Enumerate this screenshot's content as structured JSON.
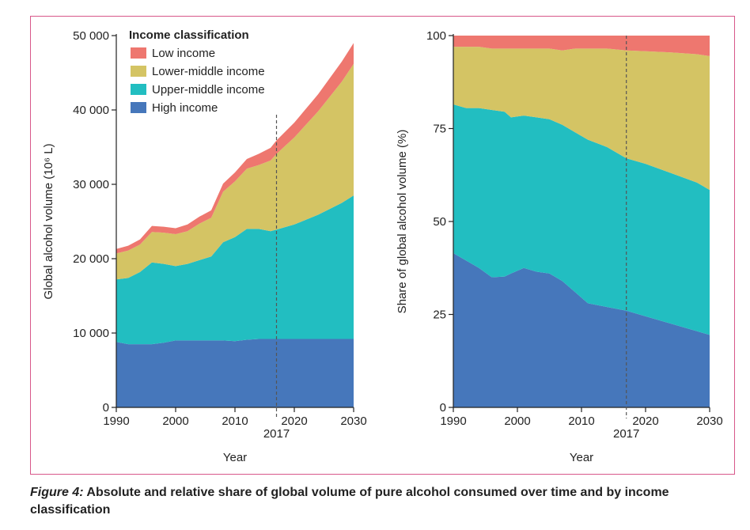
{
  "colors": {
    "low": "#ee776f",
    "lower_middle": "#d4c464",
    "upper_middle": "#22bec1",
    "high": "#4677bb",
    "frame": "#d8578a"
  },
  "legend": {
    "title": "Income classification",
    "items": [
      "Low income",
      "Lower-middle income",
      "Upper-middle income",
      "High income"
    ]
  },
  "caption": {
    "label": "Figure 4:",
    "text": "Absolute and relative share of global volume of pure alcohol consumed over time and by income classification"
  },
  "chart_data": [
    {
      "type": "area",
      "stacked": true,
      "xlabel": "Year",
      "ylabel": "Global alcohol volume (10⁶ L)",
      "xlim": [
        1990,
        2030
      ],
      "ylim": [
        0,
        50000
      ],
      "xticks": [
        1990,
        2000,
        2010,
        2020,
        2030
      ],
      "yticks": [
        0,
        10000,
        20000,
        30000,
        40000,
        50000
      ],
      "ytick_labels": [
        "0",
        "10 000",
        "20 000",
        "30 000",
        "40 000",
        "50 000"
      ],
      "annotation": {
        "x": 2017,
        "label": "2017",
        "style": "dashed"
      },
      "legend_position": "top-left",
      "x": [
        1990,
        1992,
        1994,
        1996,
        1998,
        2000,
        2002,
        2004,
        2006,
        2008,
        2010,
        2012,
        2014,
        2016,
        2017,
        2020,
        2024,
        2028,
        2030
      ],
      "series": [
        {
          "name": "High income",
          "values": [
            8800,
            8500,
            8500,
            8500,
            8700,
            9000,
            9000,
            9000,
            9000,
            9000,
            8900,
            9100,
            9200,
            9200,
            9200,
            9200,
            9200,
            9200,
            9200
          ]
        },
        {
          "name": "Upper-middle income",
          "values": [
            8400,
            8900,
            9700,
            11000,
            10600,
            10000,
            10300,
            10800,
            11300,
            13200,
            14000,
            14900,
            14800,
            14500,
            14700,
            15400,
            16700,
            18300,
            19300
          ]
        },
        {
          "name": "Lower-middle income",
          "values": [
            3500,
            3700,
            3700,
            4100,
            4200,
            4300,
            4400,
            4900,
            5200,
            6800,
            7500,
            8100,
            8600,
            9500,
            10200,
            11700,
            13900,
            16300,
            17700
          ]
        },
        {
          "name": "Low income",
          "values": [
            600,
            650,
            700,
            800,
            800,
            800,
            900,
            950,
            1000,
            1100,
            1200,
            1300,
            1500,
            1700,
            1800,
            2000,
            2300,
            2700,
            2800
          ]
        }
      ]
    },
    {
      "type": "area",
      "stacked": true,
      "xlabel": "Year",
      "ylabel": "Share of global alcohol volume (%)",
      "xlim": [
        1990,
        2030
      ],
      "ylim": [
        0,
        100
      ],
      "xticks": [
        1990,
        2000,
        2010,
        2020,
        2030
      ],
      "yticks": [
        0,
        25,
        50,
        75,
        100
      ],
      "ytick_labels": [
        "0",
        "25",
        "50",
        "75",
        "100"
      ],
      "annotation": {
        "x": 2017,
        "label": "2017",
        "style": "dashed"
      },
      "x": [
        1990,
        1992,
        1994,
        1996,
        1998,
        1999,
        2001,
        2003,
        2005,
        2007,
        2009,
        2011,
        2014,
        2017,
        2020,
        2024,
        2028,
        2030
      ],
      "series": [
        {
          "name": "High income",
          "values": [
            41.5,
            39.5,
            37.5,
            35,
            35.2,
            36,
            37.5,
            36.5,
            36,
            34,
            31,
            28,
            27,
            26,
            24.5,
            22.5,
            20.5,
            19.5
          ]
        },
        {
          "name": "Upper-middle income",
          "values": [
            40,
            41,
            43,
            45,
            44.3,
            42,
            41,
            41.5,
            41.5,
            42,
            43,
            44,
            43,
            41,
            41,
            40.5,
            40,
            39
          ]
        },
        {
          "name": "Lower-middle income",
          "values": [
            15.5,
            16.5,
            16.5,
            16.5,
            17,
            18.5,
            18,
            18.5,
            19,
            20,
            22.5,
            24.5,
            26.5,
            29,
            30.3,
            32.5,
            34.5,
            36
          ]
        },
        {
          "name": "Low income",
          "values": [
            3,
            3,
            3,
            3.5,
            3.5,
            3.5,
            3.5,
            3.5,
            3.5,
            4,
            3.5,
            3.5,
            3.5,
            4,
            4.2,
            4.5,
            5,
            5.5
          ]
        }
      ]
    }
  ]
}
